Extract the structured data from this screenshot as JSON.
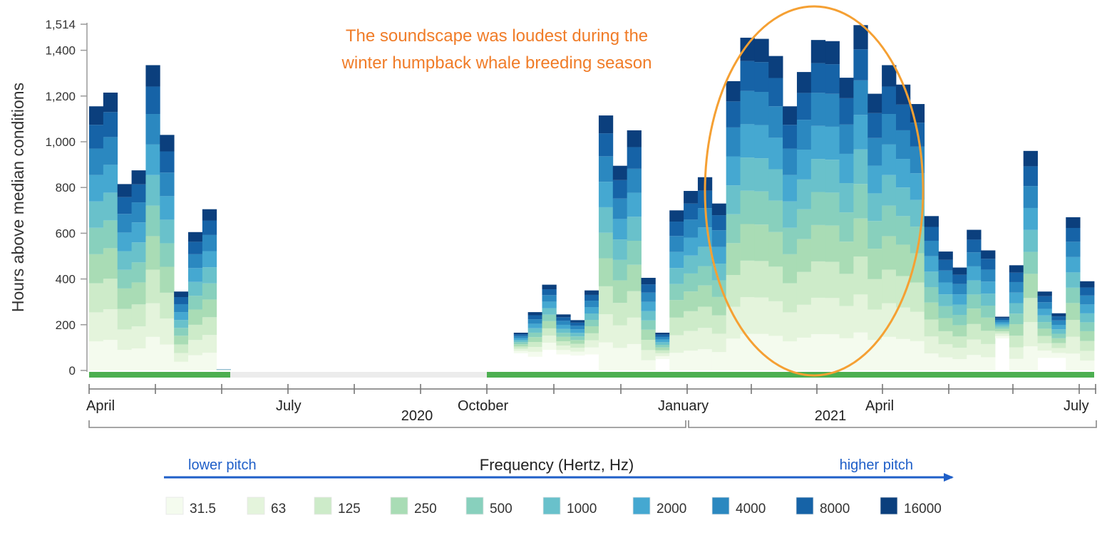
{
  "chart_data": {
    "type": "bar",
    "stacked": true,
    "title": "",
    "xlabel": "",
    "ylabel": "Hours above median conditions",
    "ylim": [
      0,
      1514
    ],
    "y_ticks": [
      "0",
      "200",
      "400",
      "600",
      "800",
      "1,000",
      "1,200",
      "1,400",
      "1,514"
    ],
    "x_month_labels": [
      "April",
      "July",
      "October",
      "January",
      "April",
      "July"
    ],
    "x_year_labels": [
      "2020",
      "2021"
    ],
    "annotation": {
      "line1": "The soundscape was loudest during the",
      "line2": "winter humpback whale breeding season"
    },
    "frequency_axis": {
      "label": "Frequency (Hertz, Hz)",
      "low": "lower pitch",
      "high": "higher pitch"
    },
    "legend": [
      "31.5",
      "63",
      "125",
      "250",
      "500",
      "1000",
      "2000",
      "4000",
      "8000",
      "16000"
    ],
    "colors": [
      "#f4fbee",
      "#e4f4dc",
      "#cdebc9",
      "#a9dcb5",
      "#88d0bd",
      "#69c1cb",
      "#45a8d1",
      "#2b88c0",
      "#1663a7",
      "#0b3f7d"
    ],
    "accent_green": "#4caf50",
    "annotation_color": "#f07c28",
    "data_coverage_bar_color": "#4caf50",
    "week_totals": [
      1155,
      1215,
      815,
      875,
      1335,
      1030,
      345,
      605,
      705,
      5,
      0,
      0,
      0,
      0,
      0,
      0,
      0,
      0,
      0,
      0,
      0,
      0,
      0,
      0,
      0,
      0,
      0,
      0,
      0,
      0,
      165,
      255,
      375,
      245,
      220,
      350,
      1115,
      895,
      1050,
      405,
      165,
      700,
      785,
      845,
      730,
      1265,
      1455,
      1450,
      1375,
      1155,
      1305,
      1445,
      1440,
      1280,
      1510,
      1210,
      1335,
      1250,
      1165,
      675,
      520,
      450,
      615,
      525,
      235,
      460,
      960,
      345,
      250,
      670,
      390
    ],
    "week_bottoms": [
      0,
      0,
      0,
      0,
      0,
      0,
      0,
      0,
      0,
      0,
      0,
      0,
      0,
      0,
      0,
      0,
      0,
      0,
      0,
      0,
      0,
      0,
      0,
      0,
      0,
      0,
      0,
      0,
      0,
      0,
      75,
      60,
      90,
      70,
      65,
      70,
      0,
      0,
      0,
      0,
      50,
      0,
      0,
      0,
      0,
      0,
      0,
      0,
      0,
      0,
      0,
      0,
      0,
      0,
      0,
      0,
      0,
      0,
      0,
      0,
      0,
      0,
      0,
      0,
      140,
      0,
      0,
      55,
      55,
      0,
      0
    ],
    "band_fractions": [
      0.11,
      0.11,
      0.11,
      0.11,
      0.1,
      0.1,
      0.1,
      0.1,
      0.09,
      0.07
    ],
    "x_range_weeks": [
      0,
      71
    ]
  }
}
